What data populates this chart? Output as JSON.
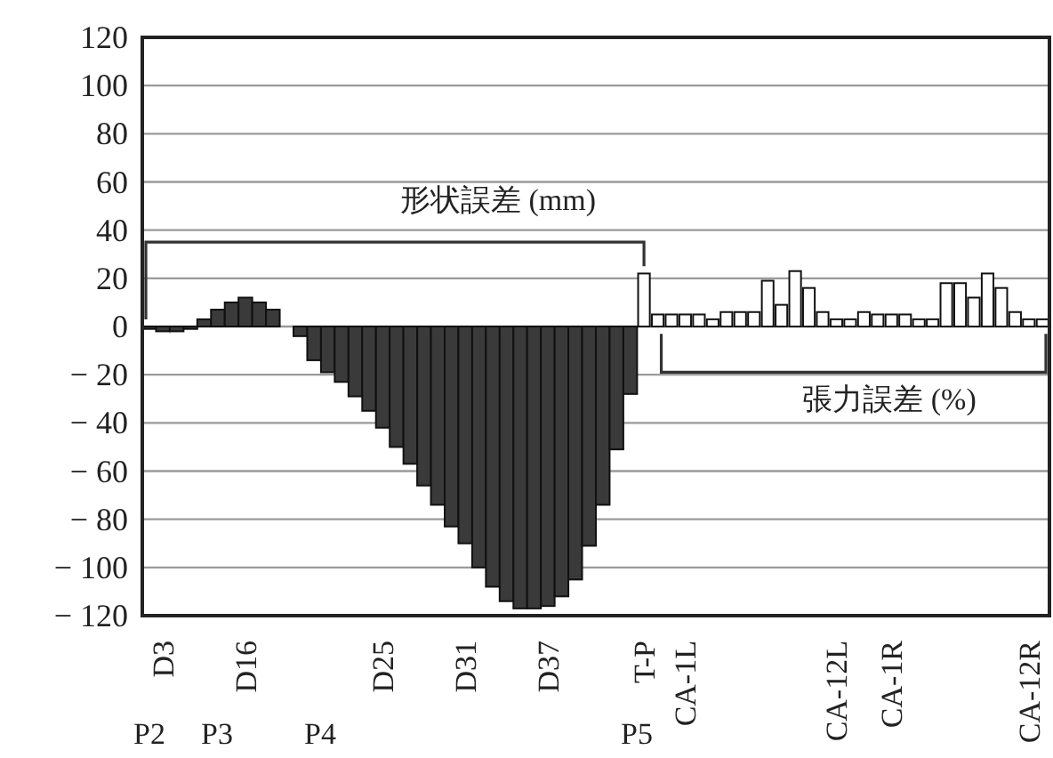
{
  "chart_data": {
    "type": "bar",
    "categories": [
      null,
      "D3",
      null,
      null,
      null,
      null,
      null,
      "D16",
      null,
      null,
      null,
      null,
      null,
      null,
      null,
      null,
      null,
      "D25",
      null,
      null,
      null,
      null,
      null,
      "D31",
      null,
      null,
      null,
      null,
      null,
      "D37",
      null,
      null,
      null,
      null,
      null,
      null,
      "T-P",
      null,
      null,
      "CA-1L",
      null,
      null,
      null,
      null,
      null,
      null,
      null,
      null,
      null,
      null,
      "CA-12L",
      null,
      null,
      null,
      "CA-1R",
      null,
      null,
      null,
      null,
      null,
      null,
      null,
      null,
      null,
      "CA-12R",
      null
    ],
    "series": [
      {
        "color": "#3a3a3a",
        "values": [
          -1,
          -2,
          -2,
          -1,
          3,
          7,
          10,
          12,
          10,
          7,
          null,
          -4,
          -14,
          -19,
          -23,
          -29,
          -35,
          -42,
          -50,
          -57,
          -66,
          -74,
          -83,
          -90,
          -100,
          -108,
          -114,
          -117,
          -117,
          -116,
          -112,
          -105,
          -91,
          -74,
          -51,
          -28,
          null,
          null,
          null,
          null,
          null,
          null,
          null,
          null,
          null,
          null,
          null,
          null,
          null,
          null,
          null,
          null,
          null,
          null,
          null,
          null,
          null,
          null,
          null,
          null,
          null,
          null,
          null,
          null,
          null,
          null
        ]
      },
      {
        "color": "#ffffff",
        "values": [
          null,
          null,
          null,
          null,
          null,
          null,
          null,
          null,
          null,
          null,
          null,
          null,
          null,
          null,
          null,
          null,
          null,
          null,
          null,
          null,
          null,
          null,
          null,
          null,
          null,
          null,
          null,
          null,
          null,
          null,
          null,
          null,
          null,
          null,
          null,
          null,
          22,
          5,
          5,
          5,
          5,
          3,
          6,
          6,
          6,
          19,
          9,
          23,
          16,
          6,
          3,
          3,
          6,
          5,
          5,
          5,
          3,
          3,
          18,
          18,
          12,
          22,
          16,
          6,
          3,
          3
        ]
      }
    ],
    "ylim": [
      -120,
      120
    ],
    "yticks": [
      {
        "value": -120,
        "label": "− 120"
      },
      {
        "value": -100,
        "label": "− 100"
      },
      {
        "value": -80,
        "label": "− 80"
      },
      {
        "value": -60,
        "label": "− 60"
      },
      {
        "value": -40,
        "label": "− 40"
      },
      {
        "value": -20,
        "label": "− 20"
      },
      0,
      20,
      40,
      60,
      80,
      100,
      120
    ],
    "grid": "y",
    "annotations": [
      "形状誤差 (mm)",
      "張力誤差 (%)",
      "P2",
      "P3",
      "P4",
      "P5"
    ]
  }
}
